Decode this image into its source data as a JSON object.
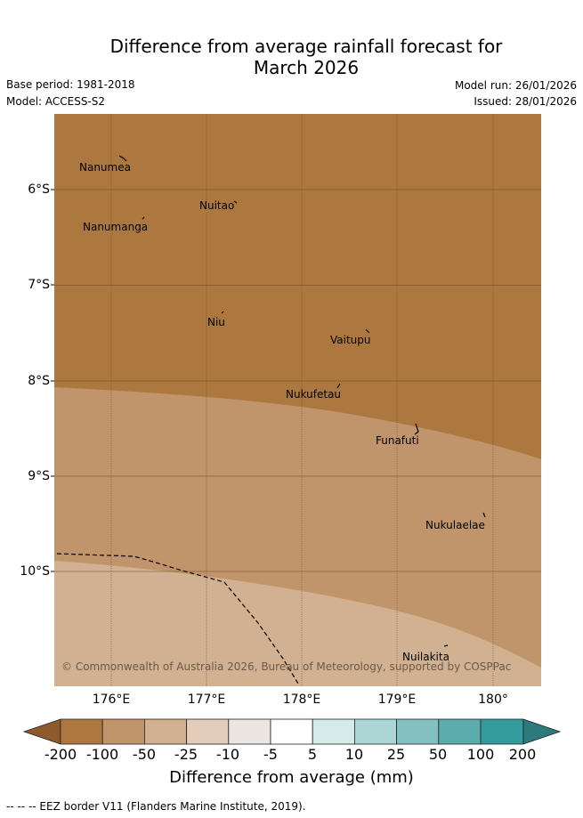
{
  "header": {
    "title_line1": "Difference from average rainfall forecast for",
    "title_line2": "March 2026",
    "base_period": "Base period: 1981-2018",
    "model": "Model: ACCESS-S2",
    "model_run": "Model run: 26/01/2026",
    "issued": "Issued: 28/01/2026"
  },
  "map": {
    "lat_labels": [
      "6°S",
      "7°S",
      "8°S",
      "9°S",
      "10°S"
    ],
    "lon_labels": [
      "176°E",
      "177°E",
      "178°E",
      "179°E",
      "180°"
    ],
    "places": [
      "Nanumea",
      "Nuitao",
      "Nanumanga",
      "Niu",
      "Vaitupu",
      "Nukufetau",
      "Funafuti",
      "Nukulaelae",
      "Nuilakita"
    ],
    "copyright": "© Commonwealth of Australia 2026, Bureau of Meteorology, supported by COSPPac"
  },
  "colorbar": {
    "labels": [
      "-200",
      "-100",
      "-50",
      "-25",
      "-10",
      "-5",
      "5",
      "10",
      "25",
      "50",
      "100",
      "200"
    ],
    "colors": [
      "#8d5a2b",
      "#ad7840",
      "#c1956b",
      "#d1b191",
      "#e4ccbb",
      "#ece6e2",
      "#ffffff",
      "#d4ebea",
      "#acd6d6",
      "#85c0c0",
      "#5cacad",
      "#339b9c",
      "#2c7a7c"
    ],
    "title": "Difference from average (mm)"
  },
  "footer": {
    "eez_note": "-- -- -- EEZ border V11 (Flanders Marine Institute, 2019)."
  }
}
